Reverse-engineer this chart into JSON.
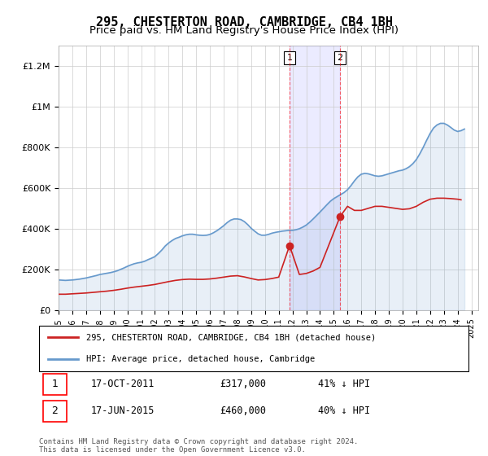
{
  "title": "295, CHESTERTON ROAD, CAMBRIDGE, CB4 1BH",
  "subtitle": "Price paid vs. HM Land Registry's House Price Index (HPI)",
  "title_fontsize": 11,
  "subtitle_fontsize": 9.5,
  "ylabel_ticks": [
    "£0",
    "£200K",
    "£400K",
    "£600K",
    "£800K",
    "£1M",
    "£1.2M"
  ],
  "ytick_values": [
    0,
    200000,
    400000,
    600000,
    800000,
    1000000,
    1200000
  ],
  "ylim": [
    0,
    1300000
  ],
  "xlim_start": 1995.0,
  "xlim_end": 2025.5,
  "hpi_color": "#6699cc",
  "price_color": "#cc2222",
  "marker1_year": 2011.79,
  "marker2_year": 2015.46,
  "marker1_price": 317000,
  "marker2_price": 460000,
  "legend_line1": "295, CHESTERTON ROAD, CAMBRIDGE, CB4 1BH (detached house)",
  "legend_line2": "HPI: Average price, detached house, Cambridge",
  "table_row1": [
    "1",
    "17-OCT-2011",
    "£317,000",
    "41% ↓ HPI"
  ],
  "table_row2": [
    "2",
    "17-JUN-2015",
    "£460,000",
    "40% ↓ HPI"
  ],
  "copyright": "Contains HM Land Registry data © Crown copyright and database right 2024.\nThis data is licensed under the Open Government Licence v3.0.",
  "hpi_x": [
    1995.0,
    1995.25,
    1995.5,
    1995.75,
    1996.0,
    1996.25,
    1996.5,
    1996.75,
    1997.0,
    1997.25,
    1997.5,
    1997.75,
    1998.0,
    1998.25,
    1998.5,
    1998.75,
    1999.0,
    1999.25,
    1999.5,
    1999.75,
    2000.0,
    2000.25,
    2000.5,
    2000.75,
    2001.0,
    2001.25,
    2001.5,
    2001.75,
    2002.0,
    2002.25,
    2002.5,
    2002.75,
    2003.0,
    2003.25,
    2003.5,
    2003.75,
    2004.0,
    2004.25,
    2004.5,
    2004.75,
    2005.0,
    2005.25,
    2005.5,
    2005.75,
    2006.0,
    2006.25,
    2006.5,
    2006.75,
    2007.0,
    2007.25,
    2007.5,
    2007.75,
    2008.0,
    2008.25,
    2008.5,
    2008.75,
    2009.0,
    2009.25,
    2009.5,
    2009.75,
    2010.0,
    2010.25,
    2010.5,
    2010.75,
    2011.0,
    2011.25,
    2011.5,
    2011.75,
    2012.0,
    2012.25,
    2012.5,
    2012.75,
    2013.0,
    2013.25,
    2013.5,
    2013.75,
    2014.0,
    2014.25,
    2014.5,
    2014.75,
    2015.0,
    2015.25,
    2015.5,
    2015.75,
    2016.0,
    2016.25,
    2016.5,
    2016.75,
    2017.0,
    2017.25,
    2017.5,
    2017.75,
    2018.0,
    2018.25,
    2018.5,
    2018.75,
    2019.0,
    2019.25,
    2019.5,
    2019.75,
    2020.0,
    2020.25,
    2020.5,
    2020.75,
    2021.0,
    2021.25,
    2021.5,
    2021.75,
    2022.0,
    2022.25,
    2022.5,
    2022.75,
    2023.0,
    2023.25,
    2023.5,
    2023.75,
    2024.0,
    2024.25,
    2024.5
  ],
  "hpi_y": [
    148000,
    147000,
    146000,
    147000,
    148000,
    150000,
    152000,
    155000,
    158000,
    162000,
    166000,
    170000,
    175000,
    178000,
    181000,
    184000,
    188000,
    193000,
    200000,
    207000,
    215000,
    222000,
    228000,
    232000,
    235000,
    240000,
    248000,
    255000,
    263000,
    278000,
    295000,
    315000,
    330000,
    342000,
    352000,
    358000,
    365000,
    370000,
    373000,
    373000,
    370000,
    368000,
    367000,
    368000,
    372000,
    380000,
    390000,
    402000,
    415000,
    430000,
    442000,
    448000,
    448000,
    445000,
    435000,
    420000,
    402000,
    388000,
    375000,
    368000,
    368000,
    372000,
    378000,
    382000,
    385000,
    388000,
    390000,
    392000,
    392000,
    395000,
    400000,
    408000,
    418000,
    432000,
    448000,
    465000,
    482000,
    500000,
    518000,
    535000,
    548000,
    558000,
    568000,
    578000,
    592000,
    612000,
    635000,
    655000,
    668000,
    672000,
    670000,
    665000,
    660000,
    658000,
    660000,
    665000,
    670000,
    675000,
    680000,
    685000,
    688000,
    695000,
    705000,
    720000,
    740000,
    768000,
    800000,
    835000,
    868000,
    895000,
    910000,
    918000,
    918000,
    910000,
    898000,
    885000,
    878000,
    882000,
    890000
  ],
  "price_x": [
    1995.0,
    1995.5,
    1996.0,
    1996.5,
    1997.0,
    1997.5,
    1998.0,
    1998.5,
    1999.0,
    1999.5,
    2000.0,
    2000.5,
    2001.0,
    2001.5,
    2002.0,
    2002.5,
    2003.0,
    2003.5,
    2004.0,
    2004.5,
    2005.0,
    2005.5,
    2006.0,
    2006.5,
    2007.0,
    2007.5,
    2008.0,
    2008.5,
    2009.0,
    2009.5,
    2010.0,
    2010.5,
    2011.0,
    2011.79,
    2012.5,
    2013.0,
    2013.5,
    2014.0,
    2015.46,
    2016.0,
    2016.5,
    2017.0,
    2017.5,
    2018.0,
    2018.5,
    2019.0,
    2019.5,
    2020.0,
    2020.5,
    2021.0,
    2021.5,
    2022.0,
    2022.5,
    2023.0,
    2023.5,
    2024.0,
    2024.25
  ],
  "price_y": [
    78000,
    78000,
    80000,
    82000,
    84000,
    87000,
    90000,
    93000,
    97000,
    102000,
    108000,
    113000,
    117000,
    121000,
    126000,
    133000,
    140000,
    146000,
    150000,
    152000,
    151000,
    151000,
    153000,
    157000,
    162000,
    167000,
    169000,
    163000,
    155000,
    148000,
    150000,
    155000,
    162000,
    317000,
    175000,
    180000,
    192000,
    210000,
    460000,
    510000,
    490000,
    490000,
    500000,
    510000,
    510000,
    505000,
    500000,
    495000,
    498000,
    510000,
    530000,
    545000,
    550000,
    550000,
    548000,
    545000,
    542000
  ]
}
